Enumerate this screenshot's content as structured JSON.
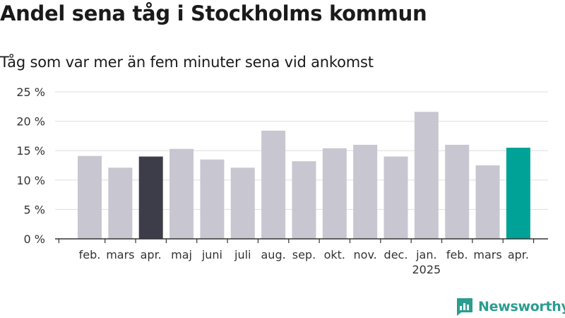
{
  "header": {
    "title": "Andel sena tåg i Stockholms kommun",
    "subtitle": "Tåg som var mer än fem minuter sena vid ankomst"
  },
  "logo": {
    "text": "Newsworthy",
    "icon": "newsworthy-logo-icon"
  },
  "colors": {
    "bar": "#c8c7d1",
    "highlight_start": "#3d3d4a",
    "highlight_end": "#00a196",
    "grid": "#dddddd",
    "axis": "#333333"
  },
  "chart_data": {
    "type": "bar",
    "title": "Andel sena tåg i Stockholms kommun",
    "subtitle": "Tåg som var mer än fem minuter sena vid ankomst",
    "categories": [
      "feb.",
      "mars",
      "apr.",
      "maj",
      "juni",
      "juli",
      "aug.",
      "sep.",
      "okt.",
      "nov.",
      "dec.",
      "jan.",
      "feb.",
      "mars",
      "apr."
    ],
    "category_sublabels": [
      "",
      "",
      "",
      "",
      "",
      "",
      "",
      "",
      "",
      "",
      "",
      "2025",
      "",
      "",
      ""
    ],
    "values": [
      14.1,
      12.1,
      14.0,
      15.3,
      13.5,
      12.1,
      18.4,
      13.2,
      15.4,
      16.0,
      14.0,
      21.6,
      16.0,
      12.5,
      15.5
    ],
    "highlighted": [
      2,
      14
    ],
    "ylim": [
      0,
      25
    ],
    "yticks": [
      0,
      5,
      10,
      15,
      20,
      25
    ],
    "ytick_labels": [
      "0 %",
      "5 %",
      "10 %",
      "15 %",
      "20 %",
      "25 %"
    ],
    "xlabel": "",
    "ylabel": "",
    "grid": true
  }
}
